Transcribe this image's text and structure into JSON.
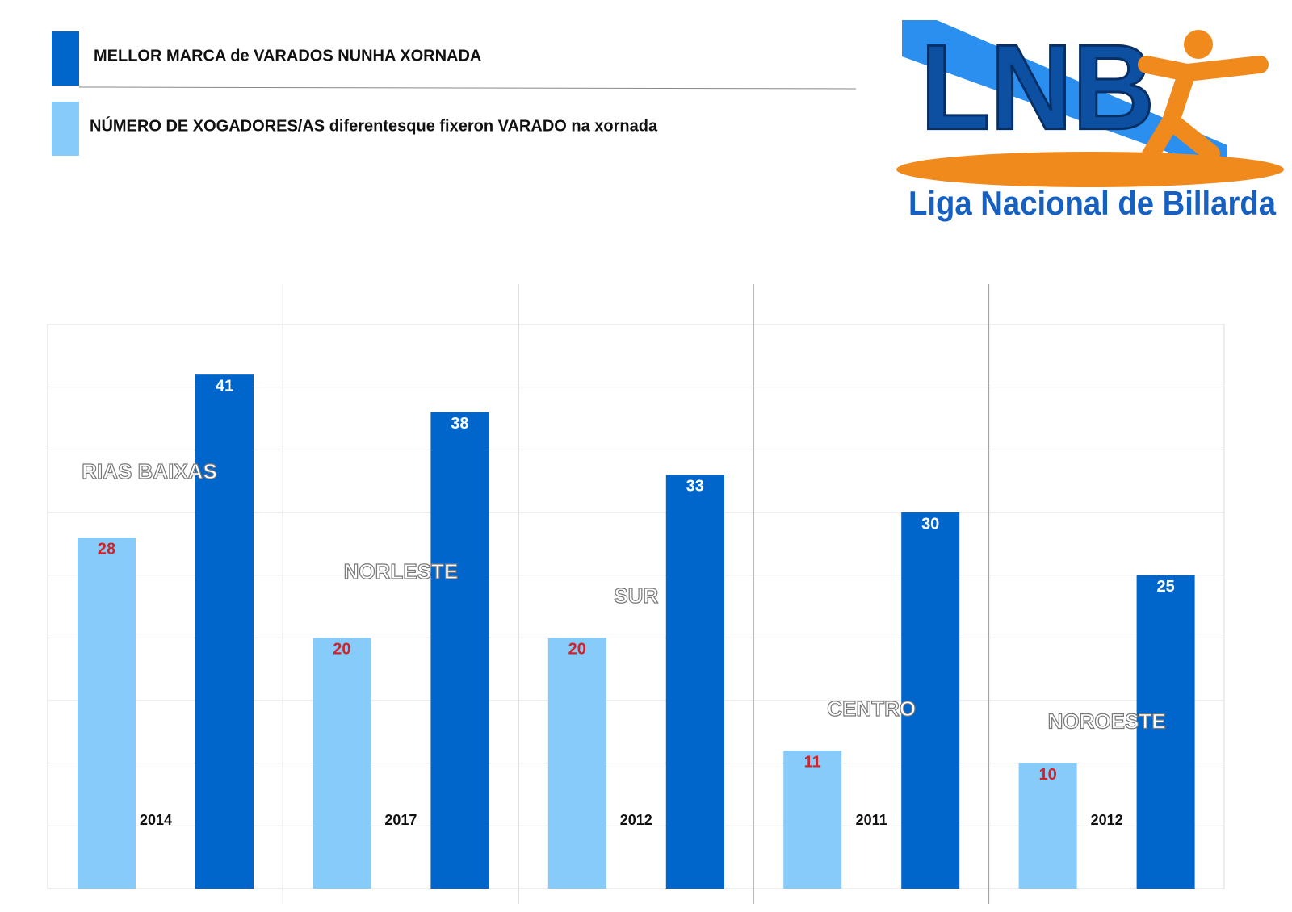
{
  "logo": {
    "text": "LNB",
    "subtitle": "Liga Nacional de Billarda"
  },
  "chart_data": {
    "type": "bar",
    "categories": [
      "RIAS BAIXAS",
      "NORLESTE",
      "SUR",
      "CENTRO",
      "NOROESTE"
    ],
    "years": [
      "2014",
      "2017",
      "2012",
      "2011",
      "2012"
    ],
    "series": [
      {
        "name": "MELLOR MARCA de VARADOS NUNHA XORNADA",
        "color": "#0066cc",
        "label_color": "#ffffff",
        "values": [
          41,
          38,
          33,
          30,
          25
        ]
      },
      {
        "name": "NÚMERO DE XOGADORES/AS diferentesque fixeron VARADO na xornada",
        "color": "#87cbfb",
        "label_color": "#d2232a",
        "values": [
          28,
          20,
          20,
          11,
          10
        ]
      }
    ],
    "ylim": [
      0,
      45
    ],
    "yticks": [
      0,
      5,
      10,
      15,
      20,
      25,
      30,
      35,
      40,
      45
    ],
    "grid": true
  }
}
